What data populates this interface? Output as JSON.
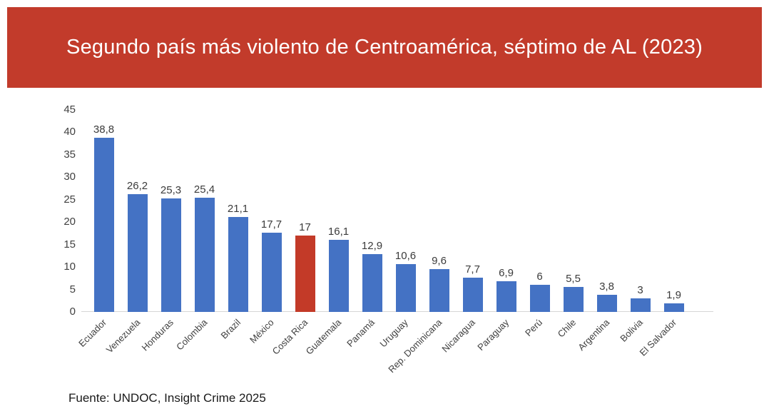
{
  "title": "Segundo país más violento de Centroamérica, séptimo de AL (2023)",
  "source": "Fuente: UNDOC, Insight Crime 2025",
  "colors": {
    "banner_bg": "#c23b2b",
    "banner_text": "#ffffff",
    "bar_default": "#4472c4",
    "bar_highlight": "#c33a28",
    "axis_text": "#404040",
    "axis_line": "#d6d6d6"
  },
  "chart_data": {
    "type": "bar",
    "title": "Segundo país más violento de Centroamérica, séptimo de AL (2023)",
    "categories": [
      "Ecuador",
      "Venezuela",
      "Honduras",
      "Colombia",
      "Brazil",
      "México",
      "Costa Rica",
      "Guatemala",
      "Panamá",
      "Uruguay",
      "Rep. Dominicana",
      "Nicaragua",
      "Paraguay",
      "Perú",
      "Chile",
      "Argentina",
      "Bolivia",
      "El Salvador"
    ],
    "values": [
      38.8,
      26.2,
      25.3,
      25.4,
      21.1,
      17.7,
      17,
      16.1,
      12.9,
      10.6,
      9.6,
      7.7,
      6.9,
      6,
      5.5,
      3.8,
      3,
      1.9
    ],
    "value_labels": [
      "38,8",
      "26,2",
      "25,3",
      "25,4",
      "21,1",
      "17,7",
      "17",
      "16,1",
      "12,9",
      "10,6",
      "9,6",
      "7,7",
      "6,9",
      "6",
      "5,5",
      "3,8",
      "3",
      "1,9"
    ],
    "highlight_category": "Costa Rica",
    "highlight_index": 6,
    "xlabel": "",
    "ylabel": "",
    "ylim": [
      0,
      45
    ],
    "yticks": [
      0,
      5,
      10,
      15,
      20,
      25,
      30,
      35,
      40,
      45
    ],
    "grid": false,
    "legend": false
  }
}
